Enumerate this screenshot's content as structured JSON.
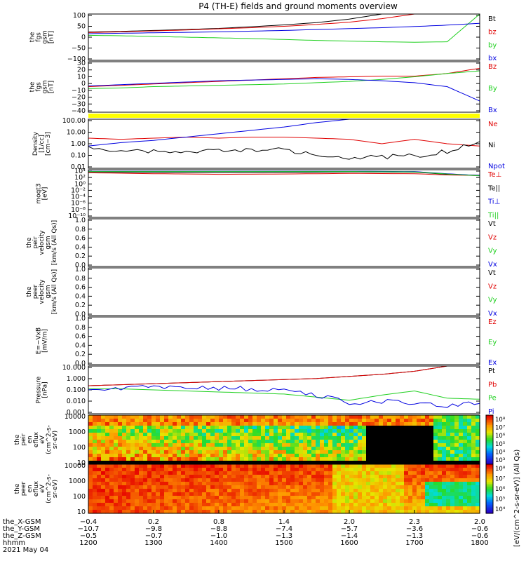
{
  "title": "P4 (TH-E) fields and ground moments overview",
  "date": "2021 May 04",
  "colors": {
    "black": "#000000",
    "red": "#e00000",
    "green": "#20d020",
    "blue": "#0000e0",
    "yellow": "#ffff00"
  },
  "chart_data": [
    {
      "id": "fgs_gsm",
      "type": "line",
      "ylabel": [
        "the",
        "fgs",
        "gsm",
        "[nT]"
      ],
      "yticks": [
        "100",
        "50",
        "0",
        "−50",
        "−100"
      ],
      "ylim": [
        -100,
        100
      ],
      "x": [
        0,
        50,
        100,
        150,
        200,
        250,
        300,
        350,
        400,
        450,
        500,
        550,
        600
      ],
      "series": [
        {
          "name": "Bt",
          "color": "black",
          "values": [
            22,
            25,
            29,
            33,
            38,
            45,
            53,
            63,
            78,
            100,
            100,
            100,
            100
          ]
        },
        {
          "name": "bz",
          "color": "red",
          "values": [
            20,
            23,
            27,
            31,
            36,
            41,
            47,
            55,
            65,
            80,
            100,
            100,
            100
          ]
        },
        {
          "name": "by",
          "color": "green",
          "values": [
            8,
            6,
            3,
            0,
            -3,
            -6,
            -10,
            -14,
            -17,
            -20,
            -22,
            -20,
            100
          ]
        },
        {
          "name": "bx",
          "color": "blue",
          "values": [
            15,
            17,
            19,
            21,
            23,
            26,
            29,
            33,
            37,
            41,
            46,
            52,
            60
          ]
        }
      ]
    },
    {
      "id": "fgs_dsl",
      "type": "line",
      "ylabel": [
        "the",
        "fgs",
        "gsm",
        "[nT]"
      ],
      "yticks": [
        "30",
        "20",
        "10",
        "0",
        "−10",
        "−20",
        "−30",
        "−40"
      ],
      "ylim": [
        -45,
        32
      ],
      "x": [
        0,
        50,
        100,
        150,
        200,
        250,
        300,
        350,
        400,
        450,
        500,
        550,
        600
      ],
      "series": [
        {
          "name": "Bz",
          "color": "red",
          "values": [
            -6,
            -4,
            -2,
            0,
            2,
            4,
            6,
            8,
            9,
            10,
            10,
            14,
            22
          ]
        },
        {
          "name": "By",
          "color": "green",
          "values": [
            -9,
            -8,
            -6,
            -5,
            -4,
            -3,
            -2,
            0,
            2,
            5,
            9,
            14,
            18
          ]
        },
        {
          "name": "Bx",
          "color": "blue",
          "values": [
            -5,
            -3,
            -1,
            1,
            3,
            4,
            5,
            6,
            5,
            3,
            0,
            -6,
            -28
          ]
        }
      ]
    },
    {
      "id": "density",
      "type": "line",
      "ylabel": [
        "Density",
        "[1/cc]",
        "[cm−3]"
      ],
      "yticks": [
        "100.00",
        "10.00",
        "1.00",
        "0.10",
        "0.01"
      ],
      "ylim": [
        -2.2,
        2.2
      ],
      "log": true,
      "x": [
        0,
        50,
        100,
        150,
        200,
        250,
        300,
        350,
        400,
        450,
        500,
        550,
        600
      ],
      "series": [
        {
          "name": "Ne",
          "color": "red",
          "values": [
            0.5,
            0.4,
            0.5,
            0.6,
            0.5,
            0.6,
            0.6,
            0.5,
            0.4,
            0.0,
            0.4,
            0.0,
            -0.2
          ]
        },
        {
          "name": "Ni",
          "color": "black",
          "values": [
            -0.4,
            -0.6,
            -0.7,
            -0.8,
            -0.6,
            -0.5,
            -0.6,
            -0.9,
            -1.3,
            -1.2,
            -1.1,
            -0.7,
            0.2
          ]
        },
        {
          "name": "Npot",
          "color": "blue",
          "values": [
            -0.2,
            0.1,
            0.3,
            0.6,
            0.9,
            1.2,
            1.5,
            1.9,
            2.2,
            2.2,
            2.2,
            2.2,
            2.2
          ]
        }
      ]
    },
    {
      "id": "moms",
      "type": "line",
      "ylabel": [
        "moqt3",
        "[eV]"
      ],
      "yticks": [
        "10⁴",
        "10²",
        "10⁰",
        "10⁻²",
        "10⁻⁴",
        "10⁻⁶",
        "10⁻⁸",
        "10⁻¹⁰"
      ],
      "ylim": [
        -11,
        4.5
      ],
      "log": true,
      "x": [
        0,
        100,
        200,
        300,
        400,
        500,
        550,
        600
      ],
      "series": [
        {
          "name": "Te⊥",
          "color": "red",
          "values": [
            3.5,
            3.2,
            3.0,
            3.1,
            3.3,
            3.2,
            2.8,
            2.6
          ]
        },
        {
          "name": "Te||",
          "color": "black",
          "values": [
            3.8,
            3.6,
            3.5,
            3.6,
            3.8,
            3.7,
            3.0,
            2.7
          ]
        },
        {
          "name": "Ti⊥",
          "color": "blue",
          "values": [
            4.0,
            4.0,
            4.0,
            4.0,
            4.0,
            3.9,
            3.2,
            2.6
          ]
        },
        {
          "name": "Ti||",
          "color": "green",
          "values": [
            3.9,
            3.9,
            3.9,
            3.9,
            3.9,
            3.8,
            3.1,
            2.5
          ]
        }
      ]
    },
    {
      "id": "peir_velocity",
      "type": "line",
      "ylabel": [
        "the",
        "peir",
        "velocity",
        "gsm",
        "[km/s (All Qs)]"
      ],
      "yticks": [
        "1.0",
        "0.8",
        "0.6",
        "0.4",
        "0.2",
        "0.0"
      ],
      "ylim": [
        0,
        1
      ],
      "series": [
        {
          "name": "Vt",
          "color": "black"
        },
        {
          "name": "Vz",
          "color": "red"
        },
        {
          "name": "Vy",
          "color": "green"
        },
        {
          "name": "Vx",
          "color": "blue"
        }
      ]
    },
    {
      "id": "peer_velocity",
      "type": "line",
      "ylabel": [
        "the",
        "peer",
        "velocity",
        "gsm",
        "[km/s (All Qs)]"
      ],
      "yticks": [
        "1.0",
        "0.8",
        "0.6",
        "0.4",
        "0.2",
        "0.0"
      ],
      "ylim": [
        0,
        1
      ],
      "series": [
        {
          "name": "Vt",
          "color": "black"
        },
        {
          "name": "Vz",
          "color": "red"
        },
        {
          "name": "Vy",
          "color": "green"
        },
        {
          "name": "Vx",
          "color": "blue"
        }
      ]
    },
    {
      "id": "efield",
      "type": "line",
      "ylabel": [
        "E=−VxB",
        "[mV/m]"
      ],
      "yticks": [
        "1.0",
        "0.8",
        "0.6",
        "0.4",
        "0.2",
        "0.0"
      ],
      "ylim": [
        0,
        1
      ],
      "series": [
        {
          "name": "Ez",
          "color": "red"
        },
        {
          "name": "Ey",
          "color": "green"
        },
        {
          "name": "Ex",
          "color": "blue"
        }
      ]
    },
    {
      "id": "pressure",
      "type": "line",
      "ylabel": [
        "Pressure",
        "[nPa]"
      ],
      "yticks": [
        "10.000",
        "1.000",
        "0.100",
        "0.010",
        "0.001"
      ],
      "ylim": [
        -3.3,
        1.3
      ],
      "log": true,
      "x": [
        0,
        50,
        100,
        150,
        200,
        250,
        300,
        350,
        400,
        450,
        500,
        550,
        600
      ],
      "series": [
        {
          "name": "Pt",
          "color": "black",
          "values": [
            -0.6,
            -0.5,
            -0.4,
            -0.3,
            -0.2,
            -0.1,
            0.0,
            0.1,
            0.3,
            0.5,
            0.8,
            1.3,
            1.3
          ]
        },
        {
          "name": "Pb",
          "color": "red",
          "values": [
            -0.6,
            -0.5,
            -0.4,
            -0.3,
            -0.2,
            -0.1,
            0.0,
            0.1,
            0.3,
            0.5,
            0.8,
            1.3,
            1.3
          ]
        },
        {
          "name": "Pe",
          "color": "green",
          "values": [
            -0.9,
            -0.9,
            -1.0,
            -1.1,
            -1.2,
            -1.3,
            -1.4,
            -1.7,
            -2.0,
            -1.5,
            -1.1,
            -1.8,
            -1.9
          ]
        },
        {
          "name": "Pi",
          "color": "blue",
          "values": [
            -0.8,
            -0.8,
            -0.8,
            -0.8,
            -0.8,
            -0.9,
            -1.0,
            -1.5,
            -2.3,
            -2.1,
            -2.2,
            -2.5,
            -2.3
          ]
        }
      ]
    },
    {
      "id": "peir_eflux",
      "type": "heatmap",
      "ylabel": [
        "the",
        "peir",
        "en",
        "eflux",
        "eV",
        "(cm^2-s-",
        "sr-eV)"
      ],
      "yticks": [
        "10000",
        "1000",
        "100",
        "10"
      ],
      "colorbar_ticks": [
        "10⁸",
        "10⁷",
        "10⁶",
        "10⁵",
        "10⁴",
        "10³"
      ]
    },
    {
      "id": "peer_eflux",
      "type": "heatmap",
      "ylabel": [
        "the",
        "peer",
        "en",
        "eflux",
        "eV",
        "(cm^2-s-",
        "sr-eV)"
      ],
      "yticks": [
        "10000",
        "1000",
        "100",
        "10"
      ],
      "colorbar_ticks": [
        "10⁸",
        "10⁷",
        "10⁶",
        "10⁵",
        "10⁴"
      ]
    }
  ],
  "colorbar_unit": "[eV/(cm^2-s-sr-eV)] (All Qs)",
  "x_axis": {
    "row_labels": [
      "the_X-GSM",
      "the_Y-GSM",
      "the_Z-GSM",
      "hhmm"
    ],
    "columns": [
      {
        "x": "−0.4",
        "y": "−10.7",
        "z": "−0.5",
        "t": "1200"
      },
      {
        "x": "0.2",
        "y": "−9.8",
        "z": "−0.7",
        "t": "1300"
      },
      {
        "x": "0.8",
        "y": "−8.8",
        "z": "−1.0",
        "t": "1400"
      },
      {
        "x": "1.4",
        "y": "−7.4",
        "z": "−1.3",
        "t": "1500"
      },
      {
        "x": "2.0",
        "y": "−5.7",
        "z": "−1.4",
        "t": "1600"
      },
      {
        "x": "2.3",
        "y": "−3.6",
        "z": "−1.3",
        "t": "1700"
      },
      {
        "x": "2.0",
        "y": "−0.6",
        "z": "−0.6",
        "t": "1800"
      }
    ]
  }
}
